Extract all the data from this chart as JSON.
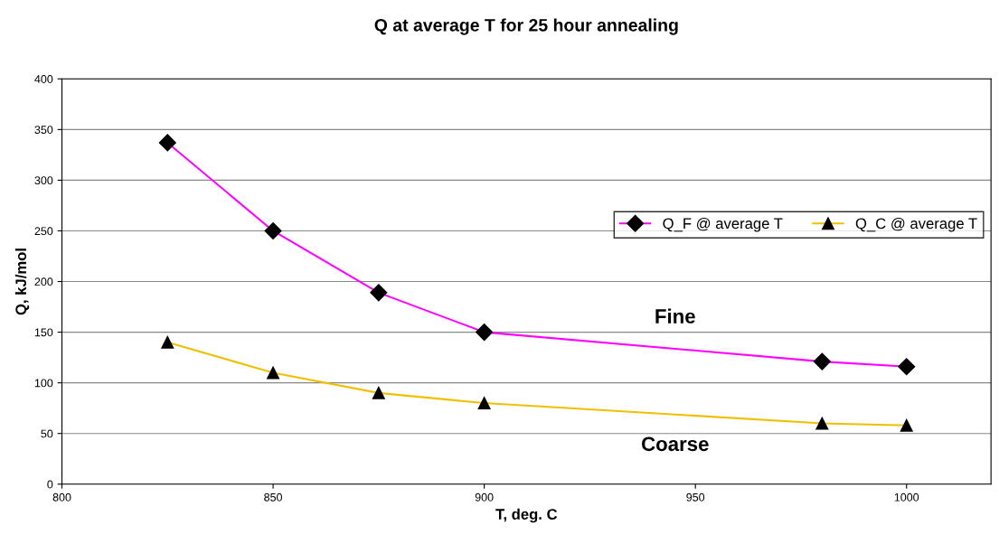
{
  "chart_data": {
    "type": "line",
    "title": "Q at average T for 25 hour annealing",
    "xlabel": "T, deg. C",
    "ylabel": "Q, kJ/mol",
    "x": [
      825,
      850,
      875,
      900,
      980,
      1000
    ],
    "series": [
      {
        "name": "Q_F @ average T",
        "color": "#ff00ff",
        "marker": "diamond",
        "values": [
          337,
          250,
          189,
          150,
          121,
          116
        ]
      },
      {
        "name": "Q_C @ average T",
        "color": "#f0c000",
        "marker": "triangle",
        "values": [
          140,
          110,
          90,
          80,
          60,
          58
        ]
      }
    ],
    "xlim": [
      800,
      1020
    ],
    "xticks": [
      800,
      850,
      900,
      950,
      1000
    ],
    "ylim": [
      0,
      400
    ],
    "yticks": [
      0,
      50,
      100,
      150,
      200,
      250,
      300,
      350,
      400
    ],
    "grid": "y",
    "legend": "right",
    "line_style": "solid",
    "annotations": [
      "Fine",
      "Coarse"
    ]
  }
}
